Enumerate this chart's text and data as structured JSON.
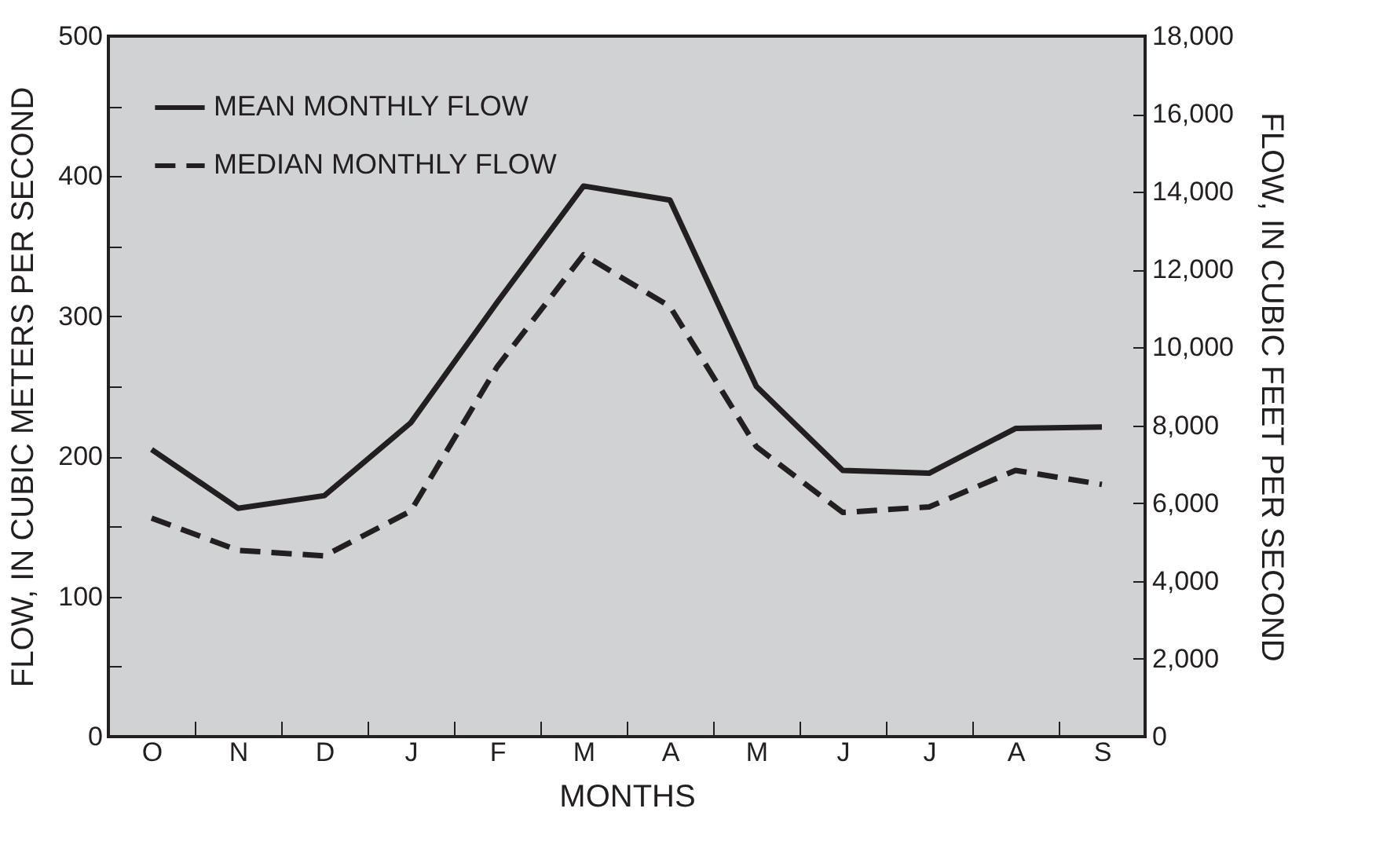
{
  "chart_data": {
    "type": "line",
    "xlabel": "MONTHS",
    "ylabel": "FLOW, IN CUBIC METERS PER SECOND",
    "y2label": "FLOW, IN CUBIC FEET PER SECOND",
    "categories": [
      "O",
      "N",
      "D",
      "J",
      "F",
      "M",
      "A",
      "M",
      "J",
      "J",
      "A",
      "S"
    ],
    "series": [
      {
        "name": "MEAN MONTHLY FLOW",
        "color": "#231f20",
        "line_style": "solid",
        "values": [
          205,
          163,
          172,
          224,
          310,
          393,
          383,
          250,
          190,
          188,
          220,
          221
        ]
      },
      {
        "name": "MEDIAN MONTHLY FLOW",
        "color": "#231f20",
        "line_style": "dashed",
        "values": [
          156,
          133,
          129,
          161,
          264,
          344,
          307,
          207,
          160,
          164,
          190,
          180
        ]
      }
    ],
    "ylim": [
      0,
      500
    ],
    "yticks": [
      0,
      {
        "value": 50,
        "label": null
      },
      100,
      {
        "value": 150,
        "label": null
      },
      200,
      {
        "value": 250,
        "label": null
      },
      300,
      {
        "value": 350,
        "label": null
      },
      400,
      {
        "value": 450,
        "label": null
      },
      500
    ],
    "y2lim": [
      0,
      18000
    ],
    "y2ticks": [
      {
        "value": 0,
        "label": "0"
      },
      {
        "value": 2000,
        "label": "2,000"
      },
      {
        "value": 4000,
        "label": "4,000"
      },
      {
        "value": 6000,
        "label": "6,000"
      },
      {
        "value": 8000,
        "label": "8,000"
      },
      {
        "value": 10000,
        "label": "10,000"
      },
      {
        "value": 12000,
        "label": "12,000"
      },
      {
        "value": 14000,
        "label": "14,000"
      },
      {
        "value": 16000,
        "label": "16,000"
      },
      {
        "value": 18000,
        "label": "18,000"
      }
    ],
    "legend": "top left",
    "grid": false,
    "marker": "none"
  }
}
